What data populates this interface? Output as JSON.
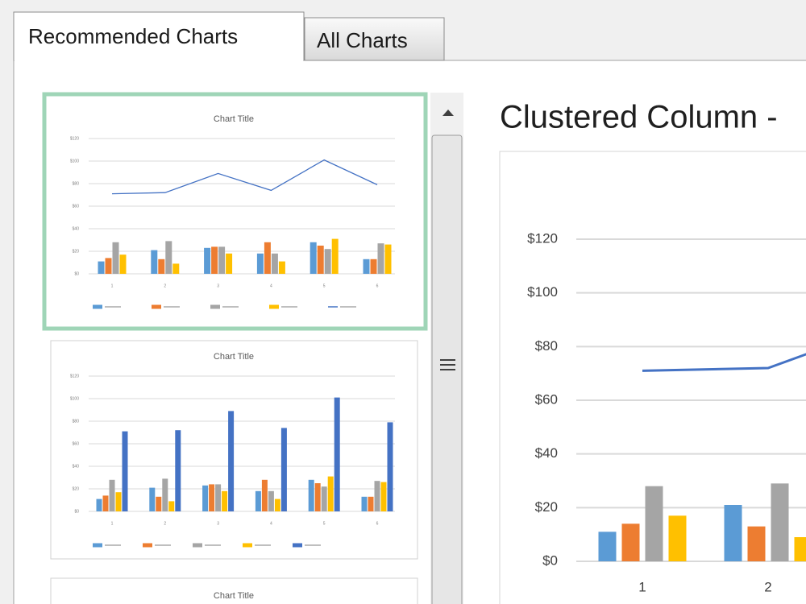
{
  "tabs": {
    "recommended": "Recommended Charts",
    "all": "All Charts"
  },
  "thumbnails": [
    {
      "title": "Chart Title"
    },
    {
      "title": "Chart Title"
    },
    {
      "title": "Chart Title"
    }
  ],
  "preview": {
    "heading": "Clustered Column -"
  },
  "chart_data": {
    "type": "combo",
    "categories": [
      "1",
      "2",
      "3",
      "4",
      "5",
      "6"
    ],
    "series": [
      {
        "color": "#5b9bd5",
        "values": [
          11,
          21,
          23,
          18,
          28,
          13
        ]
      },
      {
        "color": "#ed7d31",
        "values": [
          14,
          13,
          24,
          28,
          25,
          13
        ]
      },
      {
        "color": "#a5a5a5",
        "values": [
          28,
          29,
          24,
          18,
          22,
          27
        ]
      },
      {
        "color": "#ffc000",
        "values": [
          17,
          9,
          18,
          11,
          31,
          26
        ]
      },
      {
        "color": "#4472c4",
        "values": [
          71,
          72,
          89,
          74,
          101,
          79
        ],
        "mark": "line"
      }
    ],
    "ylim": [
      0,
      120
    ],
    "yticks": [
      {
        "value": 0,
        "label": "$0"
      },
      {
        "value": 20,
        "label": "$20"
      },
      {
        "value": 40,
        "label": "$40"
      },
      {
        "value": 60,
        "label": "$60"
      },
      {
        "value": 80,
        "label": "$80"
      },
      {
        "value": 100,
        "label": "$100"
      },
      {
        "value": 120,
        "label": "$120"
      }
    ],
    "grid": true
  }
}
